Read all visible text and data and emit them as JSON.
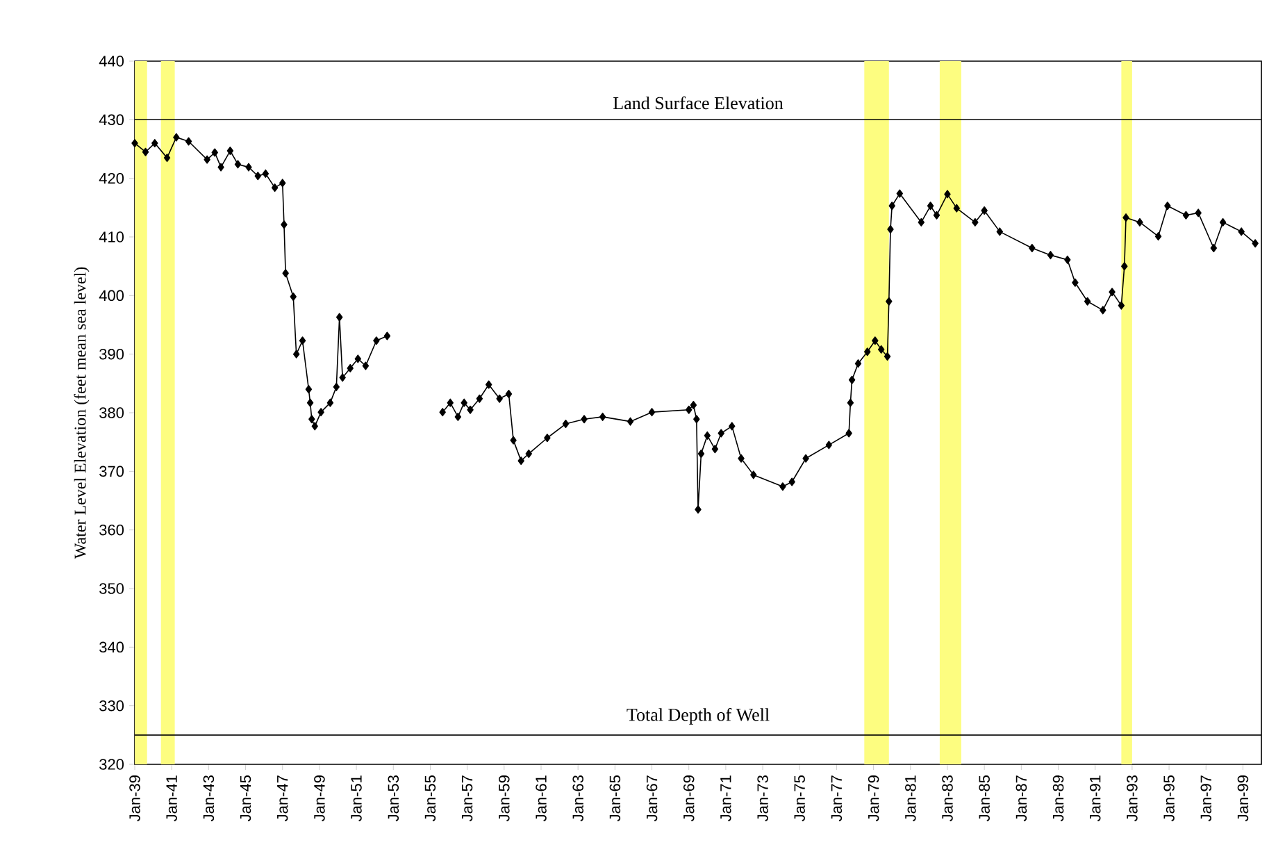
{
  "chart_data": {
    "type": "line",
    "ylabel": "Water Level Elevation (feet mean sea level)",
    "x": [
      "1939-01",
      "1939-08",
      "1940-02",
      "1940-10",
      "1941-04",
      "1941-12",
      "1942-12",
      "1943-05",
      "1943-09",
      "1944-03",
      "1944-08",
      "1945-03",
      "1945-09",
      "1946-02",
      "1946-08",
      "1947-01",
      "1947-02",
      "1947-03",
      "1947-08",
      "1947-10",
      "1948-02",
      "1948-06",
      "1948-07",
      "1948-08",
      "1948-10",
      "1949-02",
      "1949-08",
      "1949-12",
      "1950-02",
      "1950-04",
      "1950-09",
      "1951-02",
      "1951-07",
      "1952-02",
      "1952-09",
      "1954-06",
      "1955-09",
      "1956-02",
      "1956-07",
      "1956-11",
      "1957-03",
      "1957-09",
      "1958-03",
      "1958-10",
      "1959-04",
      "1959-07",
      "1959-12",
      "1960-05",
      "1961-05",
      "1962-05",
      "1963-05",
      "1964-05",
      "1965-11",
      "1967-01",
      "1969-01",
      "1969-04",
      "1969-06",
      "1969-07",
      "1969-09",
      "1970-01",
      "1970-06",
      "1970-10",
      "1971-05",
      "1971-11",
      "1972-07",
      "1974-02",
      "1974-08",
      "1975-05",
      "1976-08",
      "1977-09",
      "1977-10",
      "1977-11",
      "1978-03",
      "1978-09",
      "1979-02",
      "1979-06",
      "1979-10",
      "1979-11",
      "1979-12",
      "1980-01",
      "1980-06",
      "1981-08",
      "1982-02",
      "1982-06",
      "1983-01",
      "1983-07",
      "1984-07",
      "1985-01",
      "1985-11",
      "1987-08",
      "1988-08",
      "1989-07",
      "1989-12",
      "1990-08",
      "1991-06",
      "1991-12",
      "1992-06",
      "1992-08",
      "1992-09",
      "1993-06",
      "1994-06",
      "1994-12",
      "1995-12",
      "1996-08",
      "1997-06",
      "1997-12",
      "1998-12",
      "1999-09"
    ],
    "series": [
      {
        "color": "#000000",
        "values": [
          426,
          424.5,
          426,
          423.5,
          427,
          426.3,
          423.2,
          424.4,
          421.9,
          424.7,
          422.4,
          421.9,
          420.4,
          420.8,
          418.4,
          419.2,
          412.1,
          403.8,
          399.8,
          390,
          392.3,
          384,
          381.7,
          378.9,
          377.7,
          380.1,
          381.7,
          384.4,
          396.3,
          386,
          387.6,
          389.2,
          388,
          392.3,
          393.1,
          null,
          380.1,
          381.7,
          379.3,
          381.7,
          380.5,
          382.4,
          384.8,
          382.4,
          383.2,
          375.3,
          371.8,
          373,
          375.7,
          378.1,
          378.9,
          379.3,
          378.5,
          380.1,
          380.5,
          381.3,
          378.9,
          363.5,
          373,
          376.1,
          373.8,
          376.5,
          377.7,
          372.2,
          369.4,
          367.4,
          368.2,
          372.2,
          374.5,
          376.5,
          381.7,
          385.6,
          388.4,
          390.4,
          392.3,
          390.8,
          389.6,
          399,
          411.3,
          415.3,
          417.4,
          412.5,
          415.3,
          413.7,
          417.3,
          414.9,
          412.5,
          414.5,
          410.9,
          408.1,
          406.9,
          406.1,
          402.2,
          399,
          397.5,
          400.6,
          398.3,
          405,
          413.3,
          412.5,
          410.1,
          415.3,
          413.7,
          414.1,
          408.1,
          412.5,
          410.9,
          408.9
        ]
      }
    ],
    "marker": "diamond",
    "xlim": [
      "1939-01",
      "2000-01"
    ],
    "xticks": [
      {
        "value": "1939-01",
        "label": "Jan-39"
      },
      {
        "value": "1941-01",
        "label": "Jan-41"
      },
      {
        "value": "1943-01",
        "label": "Jan-43"
      },
      {
        "value": "1945-01",
        "label": "Jan-45"
      },
      {
        "value": "1947-01",
        "label": "Jan-47"
      },
      {
        "value": "1949-01",
        "label": "Jan-49"
      },
      {
        "value": "1951-01",
        "label": "Jan-51"
      },
      {
        "value": "1953-01",
        "label": "Jan-53"
      },
      {
        "value": "1955-01",
        "label": "Jan-55"
      },
      {
        "value": "1957-01",
        "label": "Jan-57"
      },
      {
        "value": "1959-01",
        "label": "Jan-59"
      },
      {
        "value": "1961-01",
        "label": "Jan-61"
      },
      {
        "value": "1963-01",
        "label": "Jan-63"
      },
      {
        "value": "1965-01",
        "label": "Jan-65"
      },
      {
        "value": "1967-01",
        "label": "Jan-67"
      },
      {
        "value": "1969-01",
        "label": "Jan-69"
      },
      {
        "value": "1971-01",
        "label": "Jan-71"
      },
      {
        "value": "1973-01",
        "label": "Jan-73"
      },
      {
        "value": "1975-01",
        "label": "Jan-75"
      },
      {
        "value": "1977-01",
        "label": "Jan-77"
      },
      {
        "value": "1979-01",
        "label": "Jan-79"
      },
      {
        "value": "1981-01",
        "label": "Jan-81"
      },
      {
        "value": "1983-01",
        "label": "Jan-83"
      },
      {
        "value": "1985-01",
        "label": "Jan-85"
      },
      {
        "value": "1987-01",
        "label": "Jan-87"
      },
      {
        "value": "1989-01",
        "label": "Jan-89"
      },
      {
        "value": "1991-01",
        "label": "Jan-91"
      },
      {
        "value": "1993-01",
        "label": "Jan-93"
      },
      {
        "value": "1995-01",
        "label": "Jan-95"
      },
      {
        "value": "1997-01",
        "label": "Jan-97"
      },
      {
        "value": "1999-01",
        "label": "Jan-99"
      }
    ],
    "ylim": [
      320,
      440
    ],
    "yticks": [
      320,
      330,
      340,
      350,
      360,
      370,
      380,
      390,
      400,
      410,
      420,
      430,
      440
    ],
    "ref_lines": [
      {
        "axis": "y",
        "value": 430,
        "label": "Land Surface Elevation",
        "color": "#000000"
      },
      {
        "axis": "y",
        "value": 325,
        "label": "Total Depth of Well",
        "color": "#000000"
      }
    ],
    "bands": [
      {
        "axis": "x",
        "from": "1939-01",
        "to": "1939-09",
        "color": "#fdfd80"
      },
      {
        "axis": "x",
        "from": "1940-06",
        "to": "1941-03",
        "color": "#fdfd80"
      },
      {
        "axis": "x",
        "from": "1978-07",
        "to": "1979-11",
        "color": "#fdfd80"
      },
      {
        "axis": "x",
        "from": "1982-08",
        "to": "1983-10",
        "color": "#fdfd80"
      },
      {
        "axis": "x",
        "from": "1992-06",
        "to": "1993-01",
        "color": "#fdfd80"
      }
    ]
  }
}
